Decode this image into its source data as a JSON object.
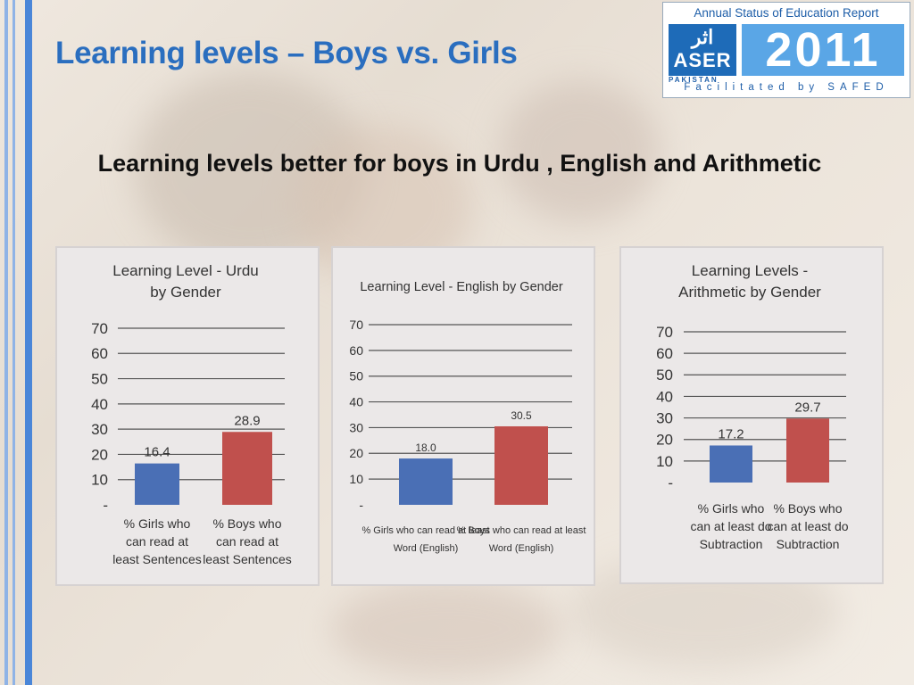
{
  "slide": {
    "title": "Learning levels – Boys vs. Girls",
    "subtitle": "Learning levels better for boys in Urdu , English and Arithmetic"
  },
  "logo": {
    "top_text": "Annual Status of Education Report",
    "urdu_text": "اثر",
    "brand": "ASER",
    "country": "PAKISTAN",
    "year": "2011",
    "facilitated": "Facilitated by SAFED"
  },
  "colors": {
    "title": "#2a6ebf",
    "girls_bar": "#4a6fb5",
    "boys_bar": "#c0504d",
    "stripe_blue": "#4a86d8",
    "panel_bg": "#ebe8e8"
  },
  "chart_data": [
    {
      "type": "bar",
      "title_lines": [
        "Learning Level - Urdu",
        "by Gender"
      ],
      "categories": [
        [
          "% Girls who",
          "can read at",
          "least Sentences"
        ],
        [
          "% Boys who",
          "can read at",
          "least Sentences"
        ]
      ],
      "values": [
        16.4,
        28.9
      ],
      "value_labels": [
        "16.4",
        "28.9"
      ],
      "yticks": [
        "70",
        "60",
        "50",
        "40",
        "30",
        "20",
        "10",
        "-"
      ],
      "ylim": [
        0,
        70
      ],
      "grid": true
    },
    {
      "type": "bar",
      "title_lines": [
        "Learning Level - English by Gender"
      ],
      "categories": [
        [
          "% Girls who can read at least",
          "Word (English)"
        ],
        [
          "% Boys who can read at least",
          "Word (English)"
        ]
      ],
      "values": [
        18.0,
        30.5
      ],
      "value_labels": [
        "18.0",
        "30.5"
      ],
      "yticks": [
        "70",
        "60",
        "50",
        "40",
        "30",
        "20",
        "10",
        "-"
      ],
      "ylim": [
        0,
        70
      ],
      "grid": true
    },
    {
      "type": "bar",
      "title_lines": [
        "Learning Levels  -",
        "Arithmetic by Gender"
      ],
      "categories": [
        [
          "% Girls who",
          "can at least do",
          "Subtraction"
        ],
        [
          "% Boys who",
          "can at least do",
          "Subtraction"
        ]
      ],
      "values": [
        17.2,
        29.7
      ],
      "value_labels": [
        "17.2",
        "29.7"
      ],
      "yticks": [
        "70",
        "60",
        "50",
        "40",
        "30",
        "20",
        "10",
        "-"
      ],
      "ylim": [
        0,
        70
      ],
      "grid": true
    }
  ]
}
